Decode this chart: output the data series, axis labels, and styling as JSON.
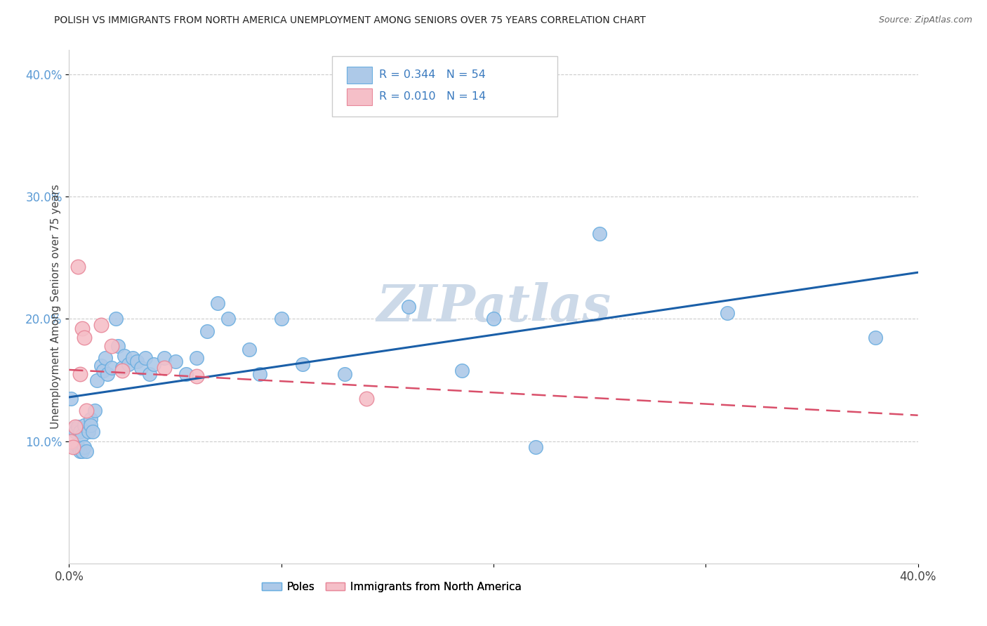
{
  "title": "POLISH VS IMMIGRANTS FROM NORTH AMERICA UNEMPLOYMENT AMONG SENIORS OVER 75 YEARS CORRELATION CHART",
  "source": "Source: ZipAtlas.com",
  "ylabel": "Unemployment Among Seniors over 75 years",
  "xlim": [
    0.0,
    0.4
  ],
  "ylim": [
    0.0,
    0.42
  ],
  "xticks": [
    0.0,
    0.1,
    0.2,
    0.3,
    0.4
  ],
  "xtick_labels": [
    "0.0%",
    "",
    "",
    "",
    "40.0%"
  ],
  "yticks": [
    0.1,
    0.2,
    0.3,
    0.4
  ],
  "ytick_labels": [
    "10.0%",
    "20.0%",
    "30.0%",
    "40.0%"
  ],
  "poles_color": "#adc9e8",
  "poles_edge_color": "#6aaee0",
  "immigrants_color": "#f5bfc8",
  "immigrants_edge_color": "#e8889a",
  "trend_poles_color": "#1a5fa8",
  "trend_immigrants_color": "#d94f6a",
  "watermark_color": "#ccd9e8",
  "R_poles": 0.344,
  "N_poles": 54,
  "R_immigrants": 0.01,
  "N_immigrants": 14,
  "poles_x": [
    0.001,
    0.002,
    0.003,
    0.003,
    0.004,
    0.004,
    0.005,
    0.005,
    0.006,
    0.006,
    0.007,
    0.007,
    0.008,
    0.009,
    0.01,
    0.01,
    0.011,
    0.012,
    0.013,
    0.015,
    0.016,
    0.017,
    0.018,
    0.02,
    0.022,
    0.023,
    0.025,
    0.026,
    0.028,
    0.03,
    0.032,
    0.034,
    0.036,
    0.038,
    0.04,
    0.045,
    0.05,
    0.055,
    0.06,
    0.065,
    0.07,
    0.075,
    0.085,
    0.09,
    0.1,
    0.11,
    0.13,
    0.16,
    0.185,
    0.2,
    0.22,
    0.25,
    0.31,
    0.38
  ],
  "poles_y": [
    0.135,
    0.11,
    0.108,
    0.095,
    0.112,
    0.095,
    0.108,
    0.092,
    0.105,
    0.092,
    0.113,
    0.095,
    0.092,
    0.108,
    0.118,
    0.113,
    0.108,
    0.125,
    0.15,
    0.162,
    0.158,
    0.168,
    0.155,
    0.16,
    0.2,
    0.178,
    0.16,
    0.17,
    0.163,
    0.168,
    0.165,
    0.16,
    0.168,
    0.155,
    0.163,
    0.168,
    0.165,
    0.155,
    0.168,
    0.19,
    0.213,
    0.2,
    0.175,
    0.155,
    0.2,
    0.163,
    0.155,
    0.21,
    0.158,
    0.2,
    0.095,
    0.27,
    0.205,
    0.185
  ],
  "immigrants_x": [
    0.001,
    0.002,
    0.003,
    0.004,
    0.005,
    0.006,
    0.007,
    0.008,
    0.015,
    0.02,
    0.025,
    0.045,
    0.06,
    0.14
  ],
  "immigrants_y": [
    0.1,
    0.095,
    0.112,
    0.243,
    0.155,
    0.192,
    0.185,
    0.125,
    0.195,
    0.178,
    0.158,
    0.16,
    0.153,
    0.135
  ]
}
